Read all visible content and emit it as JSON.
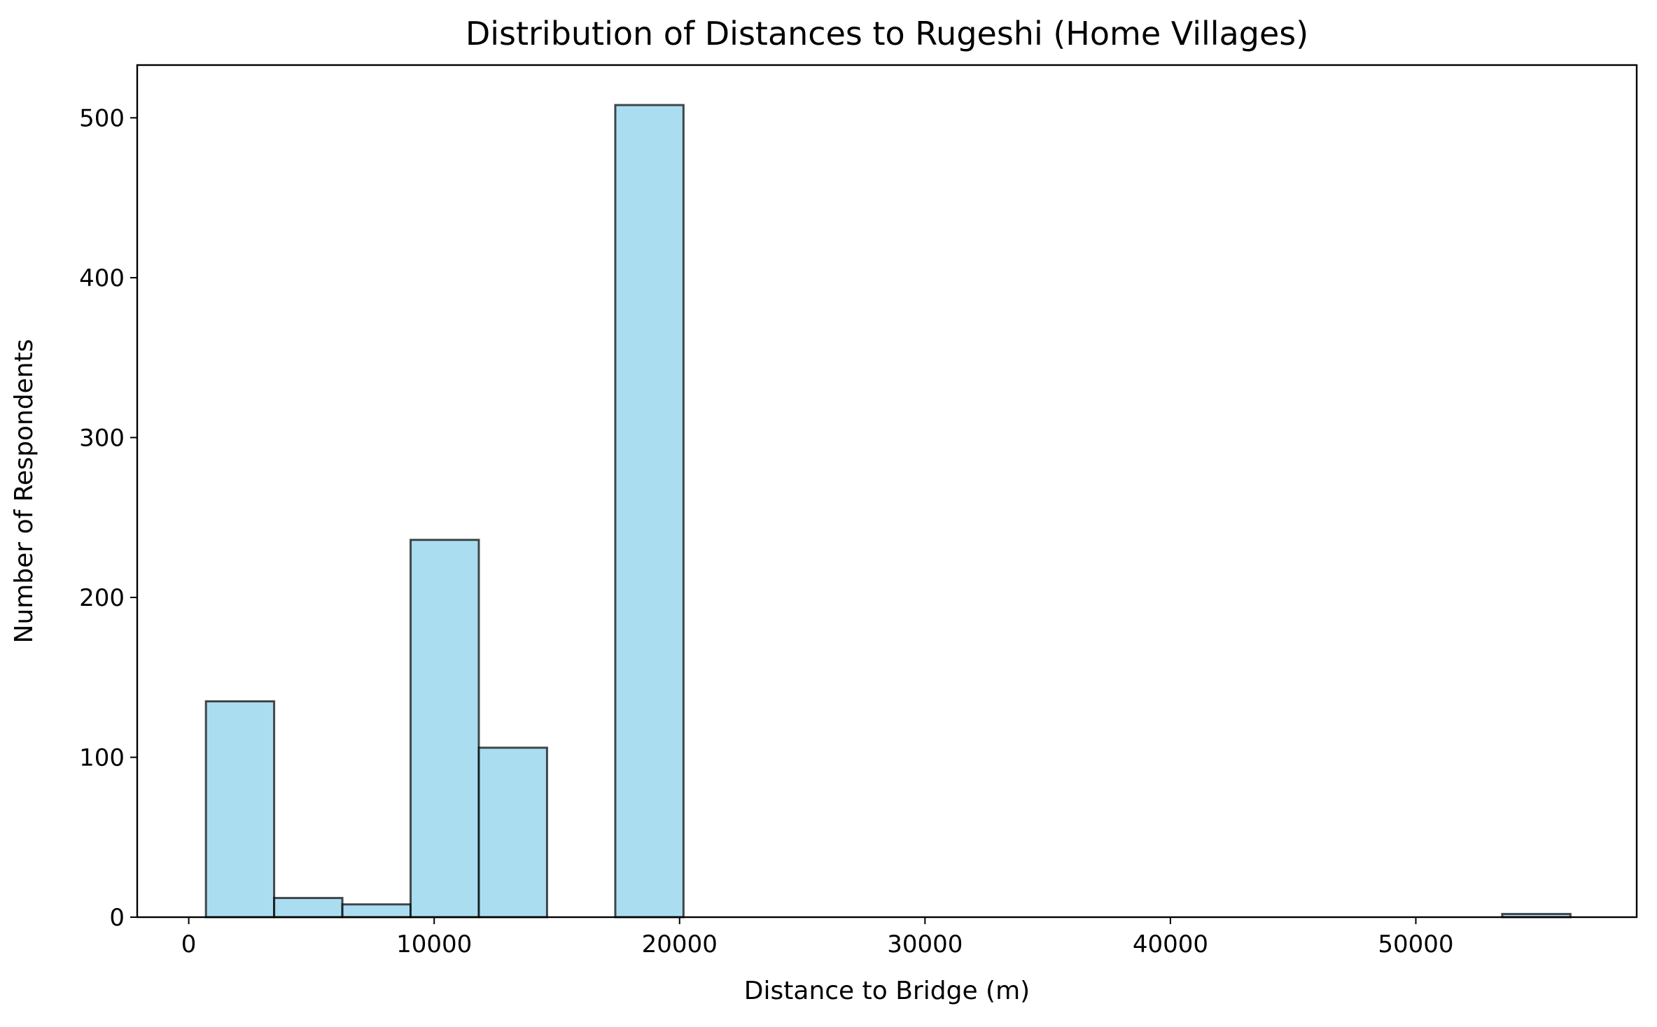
{
  "chart_data": {
    "type": "bar",
    "title": "Distribution of Distances to Rugeshi (Home Villages)",
    "xlabel": "Distance to Bridge (m)",
    "ylabel": "Number of Respondents",
    "xlim": [
      -2100,
      59000
    ],
    "ylim": [
      0,
      533
    ],
    "xticks": [
      0,
      10000,
      20000,
      30000,
      40000,
      50000
    ],
    "xtick_labels": [
      "0",
      "10000",
      "20000",
      "30000",
      "40000",
      "50000"
    ],
    "yticks": [
      0,
      100,
      200,
      300,
      400,
      500
    ],
    "ytick_labels": [
      "0",
      "100",
      "200",
      "300",
      "400",
      "500"
    ],
    "bin_edges": [
      700,
      3480,
      6260,
      9040,
      11820,
      14600,
      17380,
      20160,
      22940,
      25720,
      28500,
      31280,
      34060,
      36840,
      39620,
      42400,
      45180,
      47960,
      50740,
      53520,
      56300
    ],
    "counts": [
      135,
      12,
      8,
      236,
      106,
      0,
      508,
      0,
      0,
      0,
      0,
      0,
      0,
      0,
      0,
      0,
      0,
      0,
      0,
      2
    ],
    "grid": false,
    "legend": "none",
    "colors": {
      "bar_fill": "#87CEEB",
      "bar_alpha": 0.7,
      "bar_edge": "#000000"
    }
  }
}
